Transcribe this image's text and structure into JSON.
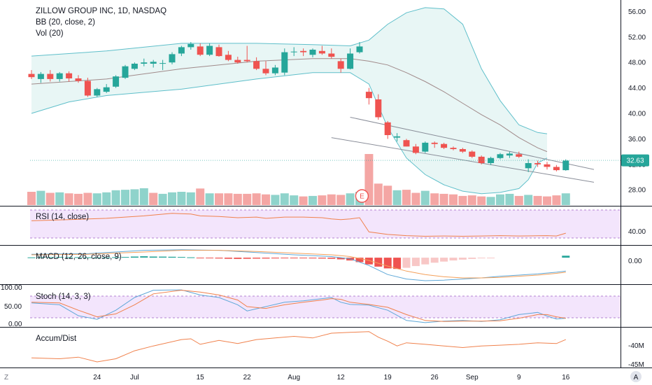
{
  "header": {
    "symbol_line": "ZILLOW GROUP INC, 1D, NASDAQ",
    "bb_line": "BB (20, close, 2)",
    "vol_line": "Vol (20)"
  },
  "price_badge": "32.63",
  "earnings_marker": "E",
  "panes": {
    "rsi": {
      "title": "RSI (14, close)",
      "ticks": [
        "40.00"
      ]
    },
    "macd": {
      "title": "MACD (12, 26, close, 9)",
      "ticks": [
        "0.00"
      ]
    },
    "stoch": {
      "title": "Stoch (14, 3, 3)",
      "left_ticks": [
        "100.00",
        "50.00",
        "0.00"
      ]
    },
    "ad": {
      "title": "Accum/Dist",
      "ticks": [
        "-40M",
        "-45M"
      ]
    }
  },
  "bottom_controls": {
    "zoom_label": "Z",
    "auto_label": "A"
  },
  "colors": {
    "up": "#26a69a",
    "down": "#ef5350",
    "up_vol": "#8fd3cb",
    "down_vol": "#f4a6a4",
    "bb_fill": "#e8f6f5",
    "bb_line": "#5fbfca",
    "bb_basis": "#a08a8a",
    "rsi_line": "#f0814c",
    "rsi_band": "#f3e5fc",
    "band_border": "#9c5fc4",
    "macd_line": "#5fa8d8",
    "signal_line": "#f4a05a",
    "stoch_k": "#5fa8d8",
    "stoch_d": "#f0814c",
    "ad_line": "#f0814c",
    "axis_text": "#131722",
    "grid": "#c8ccd6"
  },
  "chart_data": {
    "type": "candlestick",
    "title": "ZILLOW GROUP INC, 1D, NASDAQ",
    "x_ticks": [
      {
        "i": 7,
        "label": "24"
      },
      {
        "i": 11,
        "label": "Jul"
      },
      {
        "i": 18,
        "label": "15"
      },
      {
        "i": 23,
        "label": "22"
      },
      {
        "i": 28,
        "label": "Aug"
      },
      {
        "i": 33,
        "label": "12"
      },
      {
        "i": 38,
        "label": "19"
      },
      {
        "i": 43,
        "label": "26"
      },
      {
        "i": 47,
        "label": "Sep"
      },
      {
        "i": 52,
        "label": "9"
      },
      {
        "i": 57,
        "label": "16"
      }
    ],
    "y_ticks": [
      "56.00",
      "52.00",
      "48.00",
      "44.00",
      "40.00",
      "36.00",
      "32.00",
      "28.00"
    ],
    "ylim": [
      25.5,
      57.8
    ],
    "last_price": 32.63,
    "ohlc": [
      [
        46.2,
        46.8,
        45.4,
        45.7
      ],
      [
        45.4,
        46.5,
        44.8,
        46.2
      ],
      [
        46.2,
        46.8,
        45.0,
        45.4
      ],
      [
        45.4,
        46.5,
        45.0,
        46.3
      ],
      [
        46.3,
        46.6,
        45.0,
        45.5
      ],
      [
        45.5,
        46.0,
        44.8,
        45.1
      ],
      [
        45.1,
        45.6,
        42.6,
        42.8
      ],
      [
        42.8,
        44.0,
        42.6,
        43.8
      ],
      [
        43.4,
        44.6,
        43.2,
        44.1
      ],
      [
        44.2,
        46.0,
        44.0,
        45.8
      ],
      [
        45.6,
        47.6,
        45.4,
        47.4
      ],
      [
        47.0,
        48.0,
        46.8,
        47.8
      ],
      [
        47.8,
        48.6,
        47.4,
        48.0
      ],
      [
        47.8,
        48.4,
        47.2,
        48.1
      ],
      [
        47.8,
        48.4,
        46.8,
        47.9
      ],
      [
        48.0,
        49.6,
        47.7,
        49.3
      ],
      [
        49.4,
        50.6,
        49.0,
        50.4
      ],
      [
        50.4,
        51.2,
        50.0,
        50.9
      ],
      [
        50.5,
        51.0,
        49.0,
        49.2
      ],
      [
        49.2,
        51.0,
        49.0,
        50.6
      ],
      [
        50.4,
        50.8,
        48.9,
        49.0
      ],
      [
        49.2,
        49.8,
        48.2,
        48.4
      ],
      [
        48.4,
        48.9,
        47.8,
        48.0
      ],
      [
        48.4,
        50.6,
        48.0,
        48.2
      ],
      [
        48.2,
        48.8,
        46.8,
        47.0
      ],
      [
        47.0,
        48.2,
        46.0,
        46.3
      ],
      [
        46.3,
        47.6,
        46.0,
        47.2
      ],
      [
        46.4,
        50.2,
        46.0,
        49.6
      ],
      [
        49.6,
        50.4,
        49.0,
        49.7
      ],
      [
        49.8,
        50.2,
        49.0,
        49.6
      ],
      [
        49.2,
        50.2,
        48.8,
        50.0
      ],
      [
        49.8,
        50.6,
        49.2,
        49.4
      ],
      [
        49.4,
        50.2,
        48.6,
        48.9
      ],
      [
        48.2,
        48.6,
        46.4,
        47.0
      ],
      [
        47.0,
        50.2,
        46.9,
        49.4
      ],
      [
        49.6,
        51.2,
        49.4,
        50.5
      ],
      [
        43.4,
        44.0,
        41.4,
        42.4
      ],
      [
        42.2,
        43.0,
        39.0,
        39.4
      ],
      [
        38.6,
        38.8,
        36.0,
        36.6
      ],
      [
        36.2,
        36.9,
        35.6,
        36.4
      ],
      [
        35.8,
        36.0,
        34.8,
        34.8
      ],
      [
        34.8,
        35.2,
        33.6,
        33.8
      ],
      [
        34.0,
        35.6,
        33.8,
        35.4
      ],
      [
        35.4,
        35.6,
        34.6,
        35.2
      ],
      [
        35.2,
        35.4,
        34.4,
        34.6
      ],
      [
        34.6,
        34.8,
        34.2,
        34.4
      ],
      [
        34.4,
        34.6,
        33.8,
        34.0
      ],
      [
        34.0,
        34.2,
        33.0,
        33.2
      ],
      [
        33.2,
        33.4,
        32.0,
        32.2
      ],
      [
        32.2,
        33.2,
        31.9,
        33.0
      ],
      [
        33.0,
        33.8,
        32.8,
        33.6
      ],
      [
        33.4,
        34.0,
        33.0,
        33.7
      ],
      [
        33.6,
        34.0,
        33.0,
        33.2
      ],
      [
        31.4,
        32.8,
        30.8,
        32.2
      ],
      [
        32.2,
        32.6,
        31.6,
        32.0
      ],
      [
        32.0,
        32.4,
        31.2,
        31.6
      ],
      [
        31.6,
        31.9,
        30.9,
        31.1
      ],
      [
        31.1,
        32.8,
        31.0,
        32.6
      ]
    ],
    "bollinger": {
      "upper": [
        [
          0,
          49.0
        ],
        [
          8,
          49.8
        ],
        [
          16,
          51.0
        ],
        [
          24,
          51.0
        ],
        [
          30,
          50.8
        ],
        [
          34,
          50.6
        ],
        [
          36,
          51.5
        ],
        [
          38,
          54.0
        ],
        [
          40,
          55.8
        ],
        [
          42,
          56.6
        ],
        [
          44,
          56.4
        ],
        [
          46,
          54.0
        ],
        [
          48,
          47.0
        ],
        [
          50,
          42.0
        ],
        [
          52,
          38.2
        ],
        [
          54,
          37.0
        ],
        [
          55,
          36.8
        ]
      ],
      "basis": [
        [
          0,
          44.6
        ],
        [
          8,
          45.4
        ],
        [
          16,
          47.0
        ],
        [
          24,
          48.2
        ],
        [
          30,
          48.6
        ],
        [
          34,
          48.6
        ],
        [
          36,
          48.2
        ],
        [
          38,
          47.6
        ],
        [
          40,
          46.4
        ],
        [
          42,
          45.0
        ],
        [
          44,
          43.4
        ],
        [
          46,
          41.6
        ],
        [
          48,
          39.8
        ],
        [
          50,
          38.2
        ],
        [
          52,
          36.2
        ],
        [
          54,
          34.6
        ],
        [
          55,
          34.0
        ]
      ],
      "lower": [
        [
          0,
          40.0
        ],
        [
          4,
          41.8
        ],
        [
          8,
          42.8
        ],
        [
          16,
          43.8
        ],
        [
          24,
          45.4
        ],
        [
          30,
          46.4
        ],
        [
          34,
          46.4
        ],
        [
          36,
          44.6
        ],
        [
          38,
          37.8
        ],
        [
          40,
          33.0
        ],
        [
          42,
          30.4
        ],
        [
          44,
          28.8
        ],
        [
          46,
          27.8
        ],
        [
          48,
          27.4
        ],
        [
          50,
          27.6
        ],
        [
          52,
          28.2
        ],
        [
          53,
          29.6
        ],
        [
          54,
          32.2
        ],
        [
          55,
          33.0
        ]
      ]
    },
    "trendlines": [
      {
        "name": "",
        "points": [
          [
            34,
            39.4
          ],
          [
            60,
            31.2
          ]
        ]
      },
      {
        "name": "",
        "points": [
          [
            32,
            36.2
          ],
          [
            60,
            29.2
          ]
        ]
      }
    ],
    "volume": [
      5.2,
      5.6,
      4.8,
      5.0,
      4.6,
      4.4,
      4.8,
      4.6,
      5.0,
      5.8,
      6.0,
      6.2,
      6.6,
      4.8,
      4.4,
      5.0,
      5.2,
      5.0,
      6.5,
      4.6,
      4.6,
      4.6,
      4.4,
      4.4,
      4.6,
      4.2,
      4.0,
      4.6,
      3.8,
      3.4,
      3.6,
      3.8,
      4.2,
      4.0,
      4.6,
      5.2,
      20.0,
      8.4,
      7.6,
      5.8,
      6.0,
      4.8,
      5.6,
      4.6,
      4.4,
      4.2,
      3.6,
      3.8,
      3.4,
      3.2,
      4.2,
      4.4,
      3.6,
      4.0,
      3.6,
      3.4,
      3.8,
      4.6
    ],
    "volume_up": [
      false,
      true,
      false,
      true,
      false,
      false,
      false,
      true,
      true,
      true,
      true,
      true,
      true,
      false,
      true,
      true,
      true,
      true,
      false,
      true,
      false,
      false,
      false,
      false,
      false,
      false,
      true,
      true,
      true,
      false,
      true,
      false,
      false,
      false,
      true,
      true,
      false,
      false,
      false,
      true,
      false,
      false,
      true,
      false,
      false,
      false,
      false,
      false,
      false,
      true,
      true,
      true,
      false,
      true,
      false,
      false,
      false,
      true
    ],
    "rsi": [
      [
        0,
        58
      ],
      [
        4,
        60
      ],
      [
        8,
        62
      ],
      [
        12,
        66
      ],
      [
        15,
        70
      ],
      [
        17,
        69
      ],
      [
        18,
        66
      ],
      [
        20,
        65
      ],
      [
        22,
        63
      ],
      [
        24,
        64
      ],
      [
        25,
        62
      ],
      [
        27,
        64
      ],
      [
        29,
        64
      ],
      [
        31,
        63
      ],
      [
        32,
        61
      ],
      [
        33,
        60
      ],
      [
        34,
        61
      ],
      [
        35,
        63
      ],
      [
        36,
        40
      ],
      [
        38,
        36
      ],
      [
        40,
        34
      ],
      [
        42,
        33
      ],
      [
        44,
        33.5
      ],
      [
        46,
        33
      ],
      [
        48,
        33.5
      ],
      [
        50,
        34
      ],
      [
        52,
        33.5
      ],
      [
        54,
        33.8
      ],
      [
        55,
        34
      ],
      [
        56,
        33.5
      ],
      [
        57,
        38
      ]
    ],
    "rsi_band": [
      30,
      70
    ],
    "macd": {
      "line": [
        [
          0,
          0.6
        ],
        [
          6,
          0.7
        ],
        [
          12,
          1.3
        ],
        [
          16,
          1.4
        ],
        [
          20,
          1.3
        ],
        [
          24,
          0.9
        ],
        [
          28,
          0.5
        ],
        [
          32,
          0.2
        ],
        [
          34,
          -0.2
        ],
        [
          36,
          -1.4
        ],
        [
          38,
          -3.0
        ],
        [
          40,
          -3.8
        ],
        [
          42,
          -4.1
        ],
        [
          44,
          -4.0
        ],
        [
          46,
          -3.8
        ],
        [
          48,
          -3.6
        ],
        [
          50,
          -3.3
        ],
        [
          52,
          -3.1
        ],
        [
          54,
          -2.9
        ],
        [
          56,
          -2.6
        ],
        [
          57,
          -2.4
        ]
      ],
      "signal": [
        [
          0,
          0.5
        ],
        [
          6,
          0.6
        ],
        [
          12,
          1.0
        ],
        [
          16,
          1.3
        ],
        [
          20,
          1.3
        ],
        [
          24,
          1.1
        ],
        [
          28,
          0.8
        ],
        [
          32,
          0.5
        ],
        [
          34,
          0.2
        ],
        [
          36,
          -0.5
        ],
        [
          38,
          -1.5
        ],
        [
          40,
          -2.4
        ],
        [
          42,
          -3.0
        ],
        [
          44,
          -3.4
        ],
        [
          46,
          -3.6
        ],
        [
          48,
          -3.6
        ],
        [
          50,
          -3.5
        ],
        [
          52,
          -3.3
        ],
        [
          54,
          -3.1
        ],
        [
          56,
          -2.8
        ],
        [
          57,
          -2.6
        ]
      ],
      "histogram": [
        0.05,
        0.08,
        0.1,
        0.12,
        0.1,
        0.08,
        0.06,
        0.04,
        0.05,
        0.08,
        0.12,
        0.2,
        0.24,
        0.2,
        0.18,
        0.16,
        0.12,
        0.06,
        -0.05,
        -0.1,
        -0.15,
        -0.2,
        -0.22,
        -0.2,
        -0.18,
        -0.16,
        -0.14,
        -0.12,
        -0.1,
        -0.12,
        -0.14,
        -0.16,
        -0.2,
        -0.3,
        -0.5,
        -0.8,
        -1.2,
        -1.6,
        -1.9,
        -2.0,
        -1.8,
        -1.5,
        -1.2,
        -0.9,
        -0.7,
        -0.5,
        -0.35,
        -0.22,
        -0.12,
        -0.06,
        0,
        0,
        0,
        0,
        0,
        0,
        0,
        0.35
      ],
      "ylim": [
        -4.6,
        2.0
      ]
    },
    "stoch": {
      "k": [
        [
          0,
          60
        ],
        [
          3,
          55
        ],
        [
          5,
          25
        ],
        [
          7,
          15
        ],
        [
          9,
          40
        ],
        [
          11,
          75
        ],
        [
          13,
          95
        ],
        [
          16,
          96
        ],
        [
          18,
          82
        ],
        [
          20,
          75
        ],
        [
          22,
          55
        ],
        [
          23,
          38
        ],
        [
          25,
          50
        ],
        [
          27,
          62
        ],
        [
          29,
          66
        ],
        [
          31,
          72
        ],
        [
          32,
          75
        ],
        [
          33,
          62
        ],
        [
          34,
          56
        ],
        [
          36,
          54
        ],
        [
          38,
          40
        ],
        [
          40,
          12
        ],
        [
          42,
          6
        ],
        [
          44,
          10
        ],
        [
          46,
          12
        ],
        [
          48,
          9
        ],
        [
          50,
          14
        ],
        [
          52,
          28
        ],
        [
          54,
          34
        ],
        [
          55,
          24
        ],
        [
          56,
          16
        ],
        [
          57,
          18
        ]
      ],
      "d": [
        [
          0,
          62
        ],
        [
          3,
          60
        ],
        [
          5,
          40
        ],
        [
          7,
          22
        ],
        [
          9,
          30
        ],
        [
          11,
          55
        ],
        [
          13,
          85
        ],
        [
          16,
          95
        ],
        [
          18,
          90
        ],
        [
          20,
          82
        ],
        [
          22,
          68
        ],
        [
          23,
          50
        ],
        [
          25,
          45
        ],
        [
          27,
          55
        ],
        [
          29,
          62
        ],
        [
          31,
          68
        ],
        [
          32,
          72
        ],
        [
          33,
          70
        ],
        [
          34,
          62
        ],
        [
          36,
          56
        ],
        [
          38,
          48
        ],
        [
          40,
          28
        ],
        [
          42,
          12
        ],
        [
          44,
          9
        ],
        [
          46,
          10
        ],
        [
          48,
          10
        ],
        [
          50,
          11
        ],
        [
          52,
          18
        ],
        [
          54,
          28
        ],
        [
          55,
          28
        ],
        [
          56,
          22
        ],
        [
          57,
          18
        ]
      ],
      "band": [
        20,
        80
      ]
    },
    "accum_dist": [
      [
        0,
        -43.6
      ],
      [
        3,
        -43.8
      ],
      [
        5,
        -43.4
      ],
      [
        7,
        -44.6
      ],
      [
        9,
        -43.8
      ],
      [
        11,
        -41.8
      ],
      [
        13,
        -40.6
      ],
      [
        16,
        -39.0
      ],
      [
        17,
        -38.8
      ],
      [
        18,
        -40.2
      ],
      [
        20,
        -39.2
      ],
      [
        22,
        -40.0
      ],
      [
        24,
        -39.0
      ],
      [
        26,
        -38.6
      ],
      [
        28,
        -38.2
      ],
      [
        30,
        -38.6
      ],
      [
        32,
        -37.4
      ],
      [
        34,
        -37.2
      ],
      [
        36,
        -37.0
      ],
      [
        37,
        -38.4
      ],
      [
        38,
        -39.4
      ],
      [
        39,
        -40.6
      ],
      [
        40,
        -39.8
      ],
      [
        42,
        -40.2
      ],
      [
        44,
        -40.6
      ],
      [
        46,
        -41.0
      ],
      [
        48,
        -40.6
      ],
      [
        50,
        -40.4
      ],
      [
        52,
        -40.2
      ],
      [
        54,
        -39.8
      ],
      [
        56,
        -40.0
      ],
      [
        57,
        -39.0
      ]
    ],
    "ad_ylim": [
      -46.0,
      -36.0
    ]
  }
}
